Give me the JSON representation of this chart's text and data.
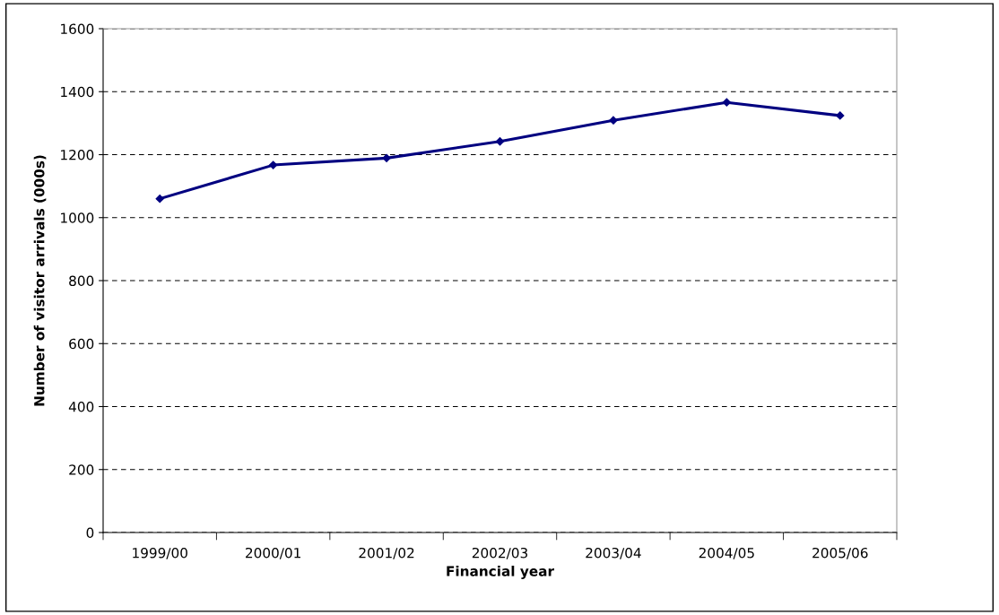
{
  "chart_data": {
    "type": "line",
    "xlabel": "Financial year",
    "ylabel": "Number of visitor arrivals (000s)",
    "categories": [
      "1999/00",
      "2000/01",
      "2001/02",
      "2002/03",
      "2003/04",
      "2004/05",
      "2005/06"
    ],
    "series": [
      {
        "color": "#000080",
        "values": [
          1060,
          1167,
          1189,
          1242,
          1309,
          1366,
          1324
        ]
      }
    ],
    "ylim": [
      0,
      1600
    ],
    "yticks": [
      0,
      200,
      400,
      600,
      800,
      1000,
      1200,
      1400,
      1600
    ],
    "grid": "y",
    "marker": "diamond",
    "line_style": "solid",
    "legend": false
  }
}
